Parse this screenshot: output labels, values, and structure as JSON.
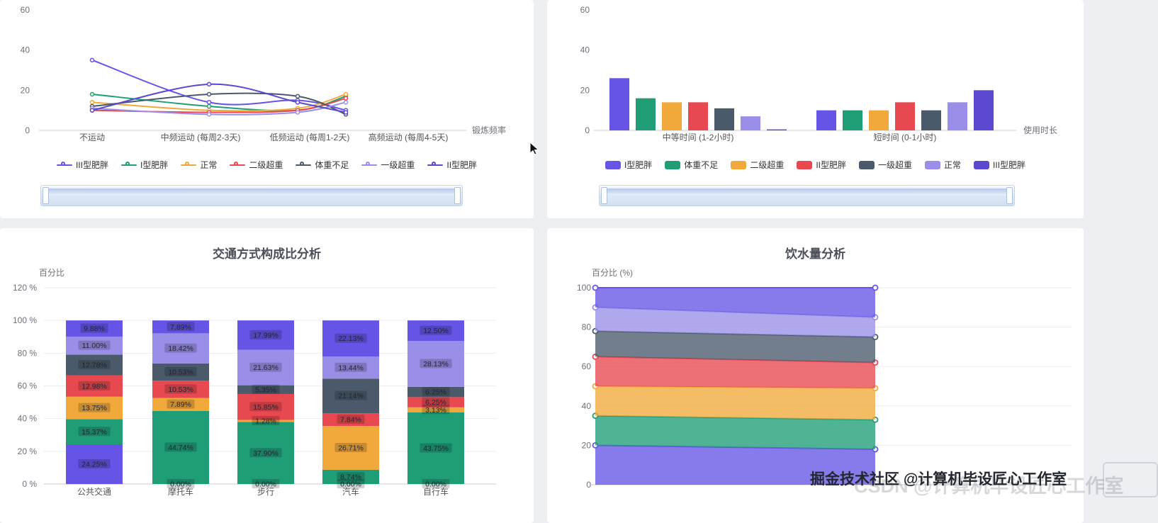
{
  "watermark": {
    "main": "掘金技术社区 @计算机毕设匠心工作室",
    "ghost": "CSDN @计算机毕设匠心工作室"
  },
  "palette": {
    "purple": "#6554e6",
    "purple2": "#5a49cf",
    "teal": "#1f9d77",
    "yellow": "#f2a93b",
    "red": "#e8484f",
    "slate": "#4a5a6a",
    "lavender": "#9a8fe8"
  },
  "chart_data": [
    {
      "id": "exercise",
      "type": "line",
      "axis_name": "锻炼频率",
      "categories": [
        "不运动",
        "中频运动 (每周2-3天)",
        "低频运动 (每周1-2天)",
        "高频运动 (每周4-5天)"
      ],
      "ylim": [
        0,
        60
      ],
      "yticks": [
        0,
        20,
        40,
        60
      ],
      "legend_position": "bottom",
      "grid": false,
      "series": [
        {
          "name": "III型肥胖",
          "color": "#6554e6",
          "values": [
            35,
            14,
            15,
            10
          ]
        },
        {
          "name": "I型肥胖",
          "color": "#1f9d77",
          "values": [
            18,
            12,
            10,
            17
          ]
        },
        {
          "name": "正常",
          "color": "#f2a93b",
          "values": [
            14,
            10,
            11,
            18
          ]
        },
        {
          "name": "二级超重",
          "color": "#e8484f",
          "values": [
            10,
            9,
            10,
            16
          ]
        },
        {
          "name": "体重不足",
          "color": "#4a5a6a",
          "values": [
            12,
            18,
            17,
            8
          ]
        },
        {
          "name": "一级超重",
          "color": "#9a8fe8",
          "values": [
            11,
            8,
            9,
            14
          ]
        },
        {
          "name": "II型肥胖",
          "color": "#5a49cf",
          "values": [
            10,
            23,
            14,
            9
          ]
        }
      ]
    },
    {
      "id": "duration",
      "type": "bar",
      "axis_name": "使用时长",
      "categories": [
        "中等时间 (1-2小时)",
        "短时间 (0-1小时)"
      ],
      "ylim": [
        0,
        60
      ],
      "yticks": [
        0,
        20,
        40,
        60
      ],
      "legend_position": "bottom",
      "grid": false,
      "series": [
        {
          "name": "I型肥胖",
          "color": "#6554e6",
          "values": [
            26,
            10
          ]
        },
        {
          "name": "体重不足",
          "color": "#1f9d77",
          "values": [
            16,
            10
          ]
        },
        {
          "name": "二级超重",
          "color": "#f2a93b",
          "values": [
            14,
            10
          ]
        },
        {
          "name": "II型肥胖",
          "color": "#e8484f",
          "values": [
            14,
            14
          ]
        },
        {
          "name": "一级超重",
          "color": "#4a5a6a",
          "values": [
            11,
            10
          ]
        },
        {
          "name": "正常",
          "color": "#9a8fe8",
          "values": [
            7,
            14
          ]
        },
        {
          "name": "III型肥胖",
          "color": "#5a49cf",
          "values": [
            0.5,
            20
          ]
        }
      ]
    },
    {
      "id": "transport",
      "type": "stacked-bar",
      "title": "交通方式构成比分析",
      "ylabel": "百分比",
      "categories": [
        "公共交通",
        "摩托车",
        "步行",
        "汽车",
        "自行车"
      ],
      "ylim": [
        0,
        120
      ],
      "yticks": [
        0,
        20,
        40,
        60,
        80,
        100,
        120
      ],
      "ytick_suffix": " %",
      "grid": true,
      "series": [
        {
          "color": "#6554e6",
          "values": [
            24.25,
            0,
            0,
            0,
            0
          ],
          "labels": [
            "24.25%",
            "0.00%",
            "0.00%",
            "0.00%",
            "0.00%"
          ]
        },
        {
          "color": "#1f9d77",
          "values": [
            15.37,
            44.74,
            37.9,
            8.74,
            43.75
          ],
          "labels": [
            "15.37%",
            "44.74%",
            "37.90%",
            "8.74%",
            "43.75%"
          ]
        },
        {
          "color": "#f2a93b",
          "values": [
            13.75,
            7.89,
            1.28,
            26.71,
            3.13
          ],
          "labels": [
            "13.75%",
            "7.89%",
            "1.28%",
            "26.71%",
            "3.13%"
          ]
        },
        {
          "color": "#e8484f",
          "values": [
            12.98,
            10.53,
            15.85,
            7.84,
            6.25
          ],
          "labels": [
            "12.98%",
            "10.53%",
            "15.85%",
            "7.84%",
            "6.25%"
          ]
        },
        {
          "color": "#4a5a6a",
          "values": [
            12.78,
            10.53,
            5.35,
            21.14,
            6.25
          ],
          "labels": [
            "12.78%",
            "10.53%",
            "5.35%",
            "21.14%",
            "6.25%"
          ]
        },
        {
          "color": "#9a8fe8",
          "values": [
            11.0,
            18.42,
            21.63,
            13.44,
            28.13
          ],
          "labels": [
            "11.00%",
            "18.42%",
            "21.63%",
            "13.44%",
            "28.13%"
          ]
        },
        {
          "color": "#6554e6",
          "values": [
            9.88,
            7.89,
            17.99,
            22.13,
            12.5
          ],
          "labels": [
            "9.88%",
            "7.89%",
            "17.99%",
            "22.13%",
            "12.50%"
          ]
        }
      ]
    },
    {
      "id": "water",
      "type": "stacked-area",
      "title": "饮水量分析",
      "ylabel": "百分比 (%)",
      "ylim": [
        0,
        100
      ],
      "yticks": [
        0,
        20,
        40,
        60,
        80,
        100
      ],
      "grid": true,
      "series": [
        {
          "color": "#6554e6",
          "values": [
            20,
            18
          ]
        },
        {
          "color": "#1f9d77",
          "values": [
            15,
            15
          ]
        },
        {
          "color": "#f2a93b",
          "values": [
            15,
            16
          ]
        },
        {
          "color": "#e8484f",
          "values": [
            15,
            13
          ]
        },
        {
          "color": "#4a5a6a",
          "values": [
            13,
            13
          ]
        },
        {
          "color": "#9a8fe8",
          "values": [
            12,
            10
          ]
        },
        {
          "color": "#6554e6",
          "values": [
            10,
            15
          ]
        }
      ]
    }
  ]
}
